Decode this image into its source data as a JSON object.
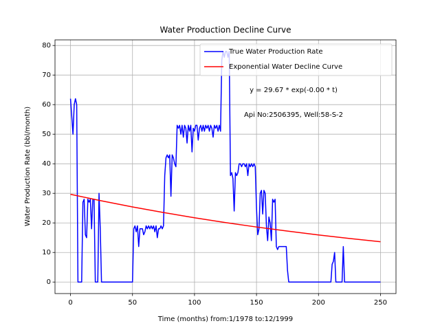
{
  "chart_data": {
    "type": "line",
    "title": "Water Production Decline Curve",
    "xlabel": "Time (months) from:1/1978 to:12/1999",
    "ylabel": "Water Production Rate (bbl/month)",
    "annotations": [
      "y = 29.67 * exp(-0.00 * t)",
      "Api No:2506395, Well:58-S-2"
    ],
    "xlim": [
      -12.5,
      262.5
    ],
    "ylim": [
      -3.9,
      81.9
    ],
    "xticks": [
      0,
      50,
      100,
      150,
      200,
      250
    ],
    "yticks": [
      0,
      10,
      20,
      30,
      40,
      50,
      60,
      70,
      80
    ],
    "grid": true,
    "legend": "upper right",
    "series": [
      {
        "name": "True Water Production Rate",
        "color": "#0000ff",
        "x": [
          0,
          1,
          2,
          3,
          4,
          5,
          6,
          9,
          10,
          11,
          12,
          13,
          14,
          15,
          16,
          17,
          18,
          19,
          20,
          22,
          23,
          24,
          25,
          50,
          51,
          52,
          53,
          54,
          55,
          56,
          58,
          59,
          60,
          61,
          62,
          63,
          64,
          65,
          66,
          67,
          68,
          69,
          70,
          71,
          72,
          73,
          74,
          75,
          76,
          77,
          78,
          79,
          80,
          81,
          82,
          83,
          84,
          85,
          86,
          87,
          88,
          89,
          90,
          91,
          92,
          93,
          94,
          95,
          96,
          97,
          98,
          99,
          100,
          101,
          102,
          103,
          104,
          105,
          106,
          107,
          108,
          109,
          110,
          111,
          112,
          113,
          114,
          115,
          116,
          117,
          118,
          119,
          120,
          121,
          122,
          123,
          124,
          125,
          126,
          127,
          128,
          129,
          130,
          131,
          132,
          133,
          134,
          135,
          136,
          137,
          138,
          139,
          140,
          141,
          142,
          143,
          144,
          145,
          146,
          147,
          148,
          149,
          150,
          151,
          152,
          153,
          154,
          155,
          156,
          157,
          158,
          159,
          160,
          161,
          162,
          163,
          164,
          165,
          166,
          167,
          168,
          174,
          175,
          176,
          210,
          211,
          212,
          213,
          214,
          219,
          220,
          221,
          250
        ],
        "values": [
          62,
          56,
          50,
          60,
          62,
          60,
          0,
          0,
          27,
          28,
          16,
          15,
          28,
          27,
          28,
          18,
          28,
          28,
          0,
          0,
          30,
          18,
          0,
          0,
          18,
          19,
          17,
          19,
          12,
          18,
          18,
          16,
          17,
          19,
          18,
          19,
          18,
          19,
          18,
          19,
          17,
          19,
          15,
          18,
          18,
          19,
          18,
          19,
          36,
          42,
          43,
          42,
          43,
          29,
          43,
          42,
          40,
          39,
          53,
          52,
          53,
          50,
          53,
          49,
          53,
          52,
          47,
          53,
          51,
          53,
          44,
          52,
          51,
          53,
          53,
          48,
          52,
          53,
          51,
          53,
          51,
          53,
          52,
          53,
          51,
          53,
          52,
          49,
          53,
          52,
          53,
          51,
          53,
          51,
          75,
          78,
          76,
          78,
          78,
          76,
          78,
          36,
          37,
          35,
          24,
          37,
          36,
          37,
          40,
          40,
          39,
          40,
          40,
          39,
          40,
          36,
          40,
          39,
          40,
          39,
          40,
          39,
          25,
          16,
          18,
          30,
          31,
          23,
          31,
          30,
          19,
          14,
          22,
          20,
          14,
          28,
          27,
          28,
          12,
          11,
          12,
          12,
          4,
          0,
          0,
          6,
          7,
          10,
          0,
          0,
          12,
          0,
          0
        ]
      },
      {
        "name": "Exponential Water Decline Curve",
        "color": "#ff0000",
        "x": [
          0,
          25,
          50,
          75,
          100,
          125,
          150,
          175,
          200,
          225,
          250
        ],
        "values": [
          29.67,
          27.45,
          25.4,
          23.5,
          21.74,
          20.11,
          18.61,
          17.22,
          15.93,
          14.74,
          13.64
        ]
      }
    ]
  }
}
